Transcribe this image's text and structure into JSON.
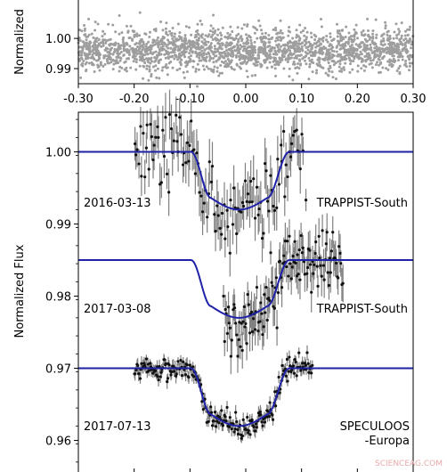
{
  "colors": {
    "top_points": "#9e9e9e",
    "data_points": "#111111",
    "error_bars": "#808080",
    "model_line": "#1f22a8",
    "axes": "#000000",
    "watermark": "#e8a9a9"
  },
  "chart_data": [
    {
      "type": "scatter",
      "panel": "top",
      "title": "",
      "xlabel": "",
      "ylabel": "Normalized",
      "xlim": [
        -0.3,
        0.3
      ],
      "ylim": [
        0.985,
        1.013
      ],
      "x_ticks": [
        "-0.30",
        "-0.20",
        "-0.10",
        "0.00",
        "0.10",
        "0.20",
        "0.30"
      ],
      "y_ticks": [
        "1.00",
        "0.99"
      ],
      "series": [
        {
          "description_of_points": "dense cloud of grey residual points",
          "center": 0.996,
          "spread": 0.0035,
          "x_range": [
            -0.3,
            0.3
          ],
          "count": 2000
        }
      ],
      "grid": false
    },
    {
      "type": "scatter",
      "panel": "bottom",
      "title": "",
      "xlabel": "",
      "ylabel": "Normalized Flux",
      "xlim": [
        -0.3,
        0.3
      ],
      "ylim": [
        0.9555,
        1.0055
      ],
      "y_ticks": [
        "1.00",
        "0.99",
        "0.98",
        "0.97",
        "0.96"
      ],
      "grid": false,
      "transit_model": {
        "center": -0.012,
        "ingress_start": -0.098,
        "full_start": -0.062,
        "full_end": 0.038,
        "egress_end": 0.078,
        "depth": 0.008
      },
      "series": [
        {
          "label": "2016-03-13",
          "instrument": "TRAPPIST-South",
          "baseline": 1.0,
          "x_range": [
            -0.2,
            0.105
          ],
          "noise": 0.0028,
          "error_bar": 0.0028,
          "count": 120
        },
        {
          "label": "2017-03-08",
          "instrument": "TRAPPIST-South",
          "baseline": 0.985,
          "x_range": [
            -0.04,
            0.175
          ],
          "noise": 0.0022,
          "error_bar": 0.0022,
          "count": 130
        },
        {
          "label": "2017-07-13",
          "instrument": "SPECULOOS\n-Europa",
          "baseline": 0.97,
          "x_range": [
            -0.2,
            0.12
          ],
          "noise": 0.0008,
          "error_bar": 0.0008,
          "count": 220
        }
      ]
    }
  ],
  "texts": {
    "top_ylabel": "Normalized",
    "bottom_ylabel": "Normalized Flux",
    "label_2016": "2016-03-13",
    "label_2017a": "2017-03-08",
    "label_2017b": "2017-07-13",
    "inst_1": "TRAPPIST-South",
    "inst_2": "TRAPPIST-South",
    "inst_3_line1": "SPECULOOS",
    "inst_3_line2": "-Europa",
    "watermark": "SCIENCEAG.COM"
  }
}
